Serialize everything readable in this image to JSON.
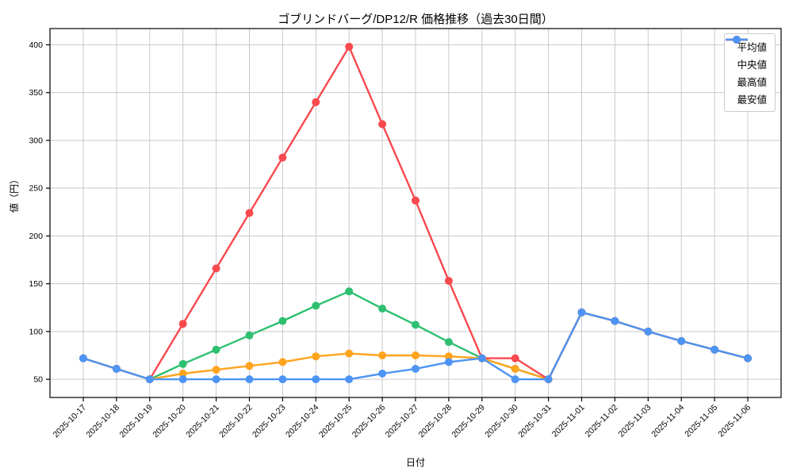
{
  "chart_data": {
    "type": "line",
    "title": "ゴブリンドバーグ/DP12/R 価格推移（過去30日間）",
    "xlabel": "日付",
    "ylabel": "値（円）",
    "categories": [
      "2025-10-17",
      "2025-10-18",
      "2025-10-19",
      "2025-10-20",
      "2025-10-21",
      "2025-10-22",
      "2025-10-23",
      "2025-10-24",
      "2025-10-25",
      "2025-10-26",
      "2025-10-27",
      "2025-10-28",
      "2025-10-29",
      "2025-10-30",
      "2025-10-31",
      "2025-11-01",
      "2025-11-02",
      "2025-11-03",
      "2025-11-04",
      "2025-11-05",
      "2025-11-06"
    ],
    "series": [
      {
        "key": "average",
        "name": "平均値",
        "color": "#2ebf70",
        "values": [
          72,
          61,
          50,
          66,
          81,
          96,
          111,
          127,
          142,
          124,
          107,
          89,
          72,
          61,
          50,
          120,
          111,
          100,
          90,
          81,
          72
        ]
      },
      {
        "key": "median",
        "name": "中央値",
        "color": "#ffa41d",
        "values": [
          72,
          61,
          50,
          56,
          60,
          64,
          68,
          74,
          77,
          75,
          75,
          74,
          72,
          61,
          50,
          120,
          111,
          100,
          90,
          81,
          72
        ]
      },
      {
        "key": "max",
        "name": "最高値",
        "color": "#f8494f",
        "values": [
          72,
          61,
          50,
          108,
          166,
          224,
          282,
          340,
          398,
          317,
          237,
          153,
          72,
          72,
          50,
          120,
          111,
          100,
          90,
          81,
          72
        ]
      },
      {
        "key": "min",
        "name": "最安値",
        "color": "#4d94f5",
        "values": [
          72,
          61,
          50,
          50,
          50,
          50,
          50,
          50,
          50,
          56,
          61,
          68,
          72,
          50,
          50,
          120,
          111,
          100,
          90,
          81,
          72
        ]
      }
    ],
    "yticks": [
      50,
      100,
      150,
      200,
      250,
      300,
      350,
      400
    ],
    "ylim": [
      31,
      417
    ],
    "grid": true,
    "grid_color": "#c9c9c9",
    "legend_position": "upper right"
  }
}
